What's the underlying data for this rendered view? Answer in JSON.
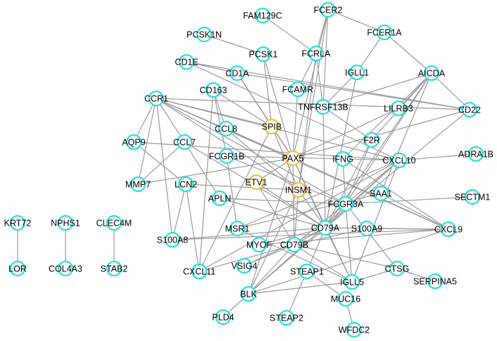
{
  "nodes": [
    {
      "label": "FAM129C",
      "color": "#22e2e2"
    },
    {
      "label": "FCER2",
      "color": "#22e2e2"
    },
    {
      "label": "FCER1A",
      "color": "#22e2e2"
    },
    {
      "label": "PCSK1N",
      "color": "#22e2e2"
    },
    {
      "label": "PCSK1",
      "color": "#22e2e2"
    },
    {
      "label": "FCRLA",
      "color": "#22e2e2"
    },
    {
      "label": "CD1E",
      "color": "#22e2e2"
    },
    {
      "label": "IGLL1",
      "color": "#22e2e2"
    },
    {
      "label": "AICDA",
      "color": "#22e2e2"
    },
    {
      "label": "CD1A",
      "color": "#22e2e2"
    },
    {
      "label": "CD163",
      "color": "#22e2e2"
    },
    {
      "label": "FCAMR",
      "color": "#22e2e2"
    },
    {
      "label": "CCR1",
      "color": "#22e2e2"
    },
    {
      "label": "TNFRSF13B",
      "color": "#22e2e2"
    },
    {
      "label": "LILRB3",
      "color": "#22e2e2"
    },
    {
      "label": "CD22",
      "color": "#22e2e2"
    },
    {
      "label": "SPIB",
      "color": "#f0c03a"
    },
    {
      "label": "CCL8",
      "color": "#22e2e2"
    },
    {
      "label": "AQP9",
      "color": "#22e2e2"
    },
    {
      "label": "CCL7",
      "color": "#22e2e2"
    },
    {
      "label": "F2R",
      "color": "#22e2e2"
    },
    {
      "label": "FCGR1B",
      "color": "#22e2e2"
    },
    {
      "label": "PAX5",
      "color": "#f0c03a"
    },
    {
      "label": "IFNG",
      "color": "#22e2e2"
    },
    {
      "label": "CXCL10",
      "color": "#22e2e2"
    },
    {
      "label": "ADRA1B",
      "color": "#22e2e2"
    },
    {
      "label": "MMP7",
      "color": "#22e2e2"
    },
    {
      "label": "LCN2",
      "color": "#22e2e2"
    },
    {
      "label": "ETV1",
      "color": "#f0c03a"
    },
    {
      "label": "INSM1",
      "color": "#f0c03a"
    },
    {
      "label": "SAA1",
      "color": "#22e2e2"
    },
    {
      "label": "SECTM1",
      "color": "#22e2e2"
    },
    {
      "label": "APLN",
      "color": "#22e2e2"
    },
    {
      "label": "FCGR3A",
      "color": "#22e2e2"
    },
    {
      "label": "CXCL9",
      "color": "#22e2e2"
    },
    {
      "label": "MSR1",
      "color": "#22e2e2"
    },
    {
      "label": "S100A8",
      "color": "#22e2e2"
    },
    {
      "label": "MYOF",
      "color": "#22e2e2"
    },
    {
      "label": "CD79A",
      "color": "#22e2e2"
    },
    {
      "label": "S100A9",
      "color": "#22e2e2"
    },
    {
      "label": "CD79B",
      "color": "#22e2e2"
    },
    {
      "label": "CTSG",
      "color": "#22e2e2"
    },
    {
      "label": "CXCL11",
      "color": "#22e2e2"
    },
    {
      "label": "VSIG4",
      "color": "#22e2e2"
    },
    {
      "label": "STEAP1",
      "color": "#22e2e2"
    },
    {
      "label": "IGLL5",
      "color": "#22e2e2"
    },
    {
      "label": "SERPINA5",
      "color": "#22e2e2"
    },
    {
      "label": "BLK",
      "color": "#22e2e2"
    },
    {
      "label": "MUC16",
      "color": "#22e2e2"
    },
    {
      "label": "PLD4",
      "color": "#22e2e2"
    },
    {
      "label": "STEAP2",
      "color": "#22e2e2"
    },
    {
      "label": "WFDC2",
      "color": "#22e2e2"
    },
    {
      "label": "KRT72",
      "color": "#22e2e2"
    },
    {
      "label": "LOR",
      "color": "#22e2e2"
    },
    {
      "label": "NPHS1",
      "color": "#22e2e2"
    },
    {
      "label": "COL4A3",
      "color": "#22e2e2"
    },
    {
      "label": "CLEC4M",
      "color": "#22e2e2"
    },
    {
      "label": "STAB2",
      "color": "#22e2e2"
    }
  ],
  "edges": [
    [
      0,
      5
    ],
    [
      1,
      5
    ],
    [
      1,
      2
    ],
    [
      1,
      13
    ],
    [
      1,
      29
    ],
    [
      1,
      22
    ],
    [
      2,
      8
    ],
    [
      2,
      7
    ],
    [
      3,
      4
    ],
    [
      4,
      22
    ],
    [
      4,
      16
    ],
    [
      5,
      11
    ],
    [
      5,
      29
    ],
    [
      5,
      13
    ],
    [
      6,
      15
    ],
    [
      6,
      24
    ],
    [
      6,
      9
    ],
    [
      7,
      38
    ],
    [
      7,
      13
    ],
    [
      8,
      15
    ],
    [
      8,
      20
    ],
    [
      8,
      23
    ],
    [
      8,
      33
    ],
    [
      8,
      13
    ],
    [
      8,
      30
    ],
    [
      8,
      38
    ],
    [
      9,
      16
    ],
    [
      9,
      15
    ],
    [
      9,
      22
    ],
    [
      10,
      17
    ],
    [
      10,
      21
    ],
    [
      10,
      42
    ],
    [
      10,
      16
    ],
    [
      11,
      22
    ],
    [
      12,
      15
    ],
    [
      12,
      16
    ],
    [
      12,
      22
    ],
    [
      12,
      24
    ],
    [
      12,
      29
    ],
    [
      12,
      36
    ],
    [
      12,
      19
    ],
    [
      12,
      18
    ],
    [
      12,
      33
    ],
    [
      12,
      34
    ],
    [
      13,
      20
    ],
    [
      13,
      38
    ],
    [
      14,
      8
    ],
    [
      14,
      22
    ],
    [
      15,
      22
    ],
    [
      15,
      38
    ],
    [
      16,
      22
    ],
    [
      16,
      29
    ],
    [
      17,
      22
    ],
    [
      17,
      29
    ],
    [
      18,
      24
    ],
    [
      18,
      27
    ],
    [
      19,
      26
    ],
    [
      19,
      32
    ],
    [
      19,
      38
    ],
    [
      20,
      38
    ],
    [
      20,
      33
    ],
    [
      21,
      24
    ],
    [
      21,
      33
    ],
    [
      21,
      35
    ],
    [
      22,
      38
    ],
    [
      22,
      40
    ],
    [
      22,
      34
    ],
    [
      22,
      45
    ],
    [
      22,
      47
    ],
    [
      22,
      28
    ],
    [
      23,
      33
    ],
    [
      23,
      34
    ],
    [
      24,
      25
    ],
    [
      24,
      33
    ],
    [
      24,
      38
    ],
    [
      24,
      35
    ],
    [
      24,
      47
    ],
    [
      24,
      45
    ],
    [
      26,
      22
    ],
    [
      27,
      29
    ],
    [
      27,
      42
    ],
    [
      27,
      36
    ],
    [
      28,
      38
    ],
    [
      28,
      40
    ],
    [
      29,
      38
    ],
    [
      29,
      40
    ],
    [
      29,
      47
    ],
    [
      30,
      34
    ],
    [
      30,
      35
    ],
    [
      31,
      33
    ],
    [
      32,
      33
    ],
    [
      32,
      38
    ],
    [
      33,
      38
    ],
    [
      33,
      40
    ],
    [
      33,
      41
    ],
    [
      33,
      45
    ],
    [
      34,
      36
    ],
    [
      34,
      38
    ],
    [
      34,
      39
    ],
    [
      35,
      45
    ],
    [
      36,
      38
    ],
    [
      37,
      38
    ],
    [
      37,
      34
    ],
    [
      38,
      40
    ],
    [
      38,
      45
    ],
    [
      38,
      47
    ],
    [
      38,
      43
    ],
    [
      38,
      44
    ],
    [
      39,
      40
    ],
    [
      40,
      45
    ],
    [
      40,
      47
    ],
    [
      41,
      46
    ],
    [
      41,
      45
    ],
    [
      41,
      40
    ],
    [
      42,
      24
    ],
    [
      42,
      16
    ],
    [
      43,
      40
    ],
    [
      44,
      48
    ],
    [
      44,
      50
    ],
    [
      45,
      47
    ],
    [
      47,
      49
    ],
    [
      47,
      34
    ],
    [
      48,
      51
    ],
    [
      42,
      40
    ],
    [
      26,
      12
    ],
    [
      52,
      53
    ],
    [
      54,
      55
    ],
    [
      56,
      57
    ]
  ]
}
